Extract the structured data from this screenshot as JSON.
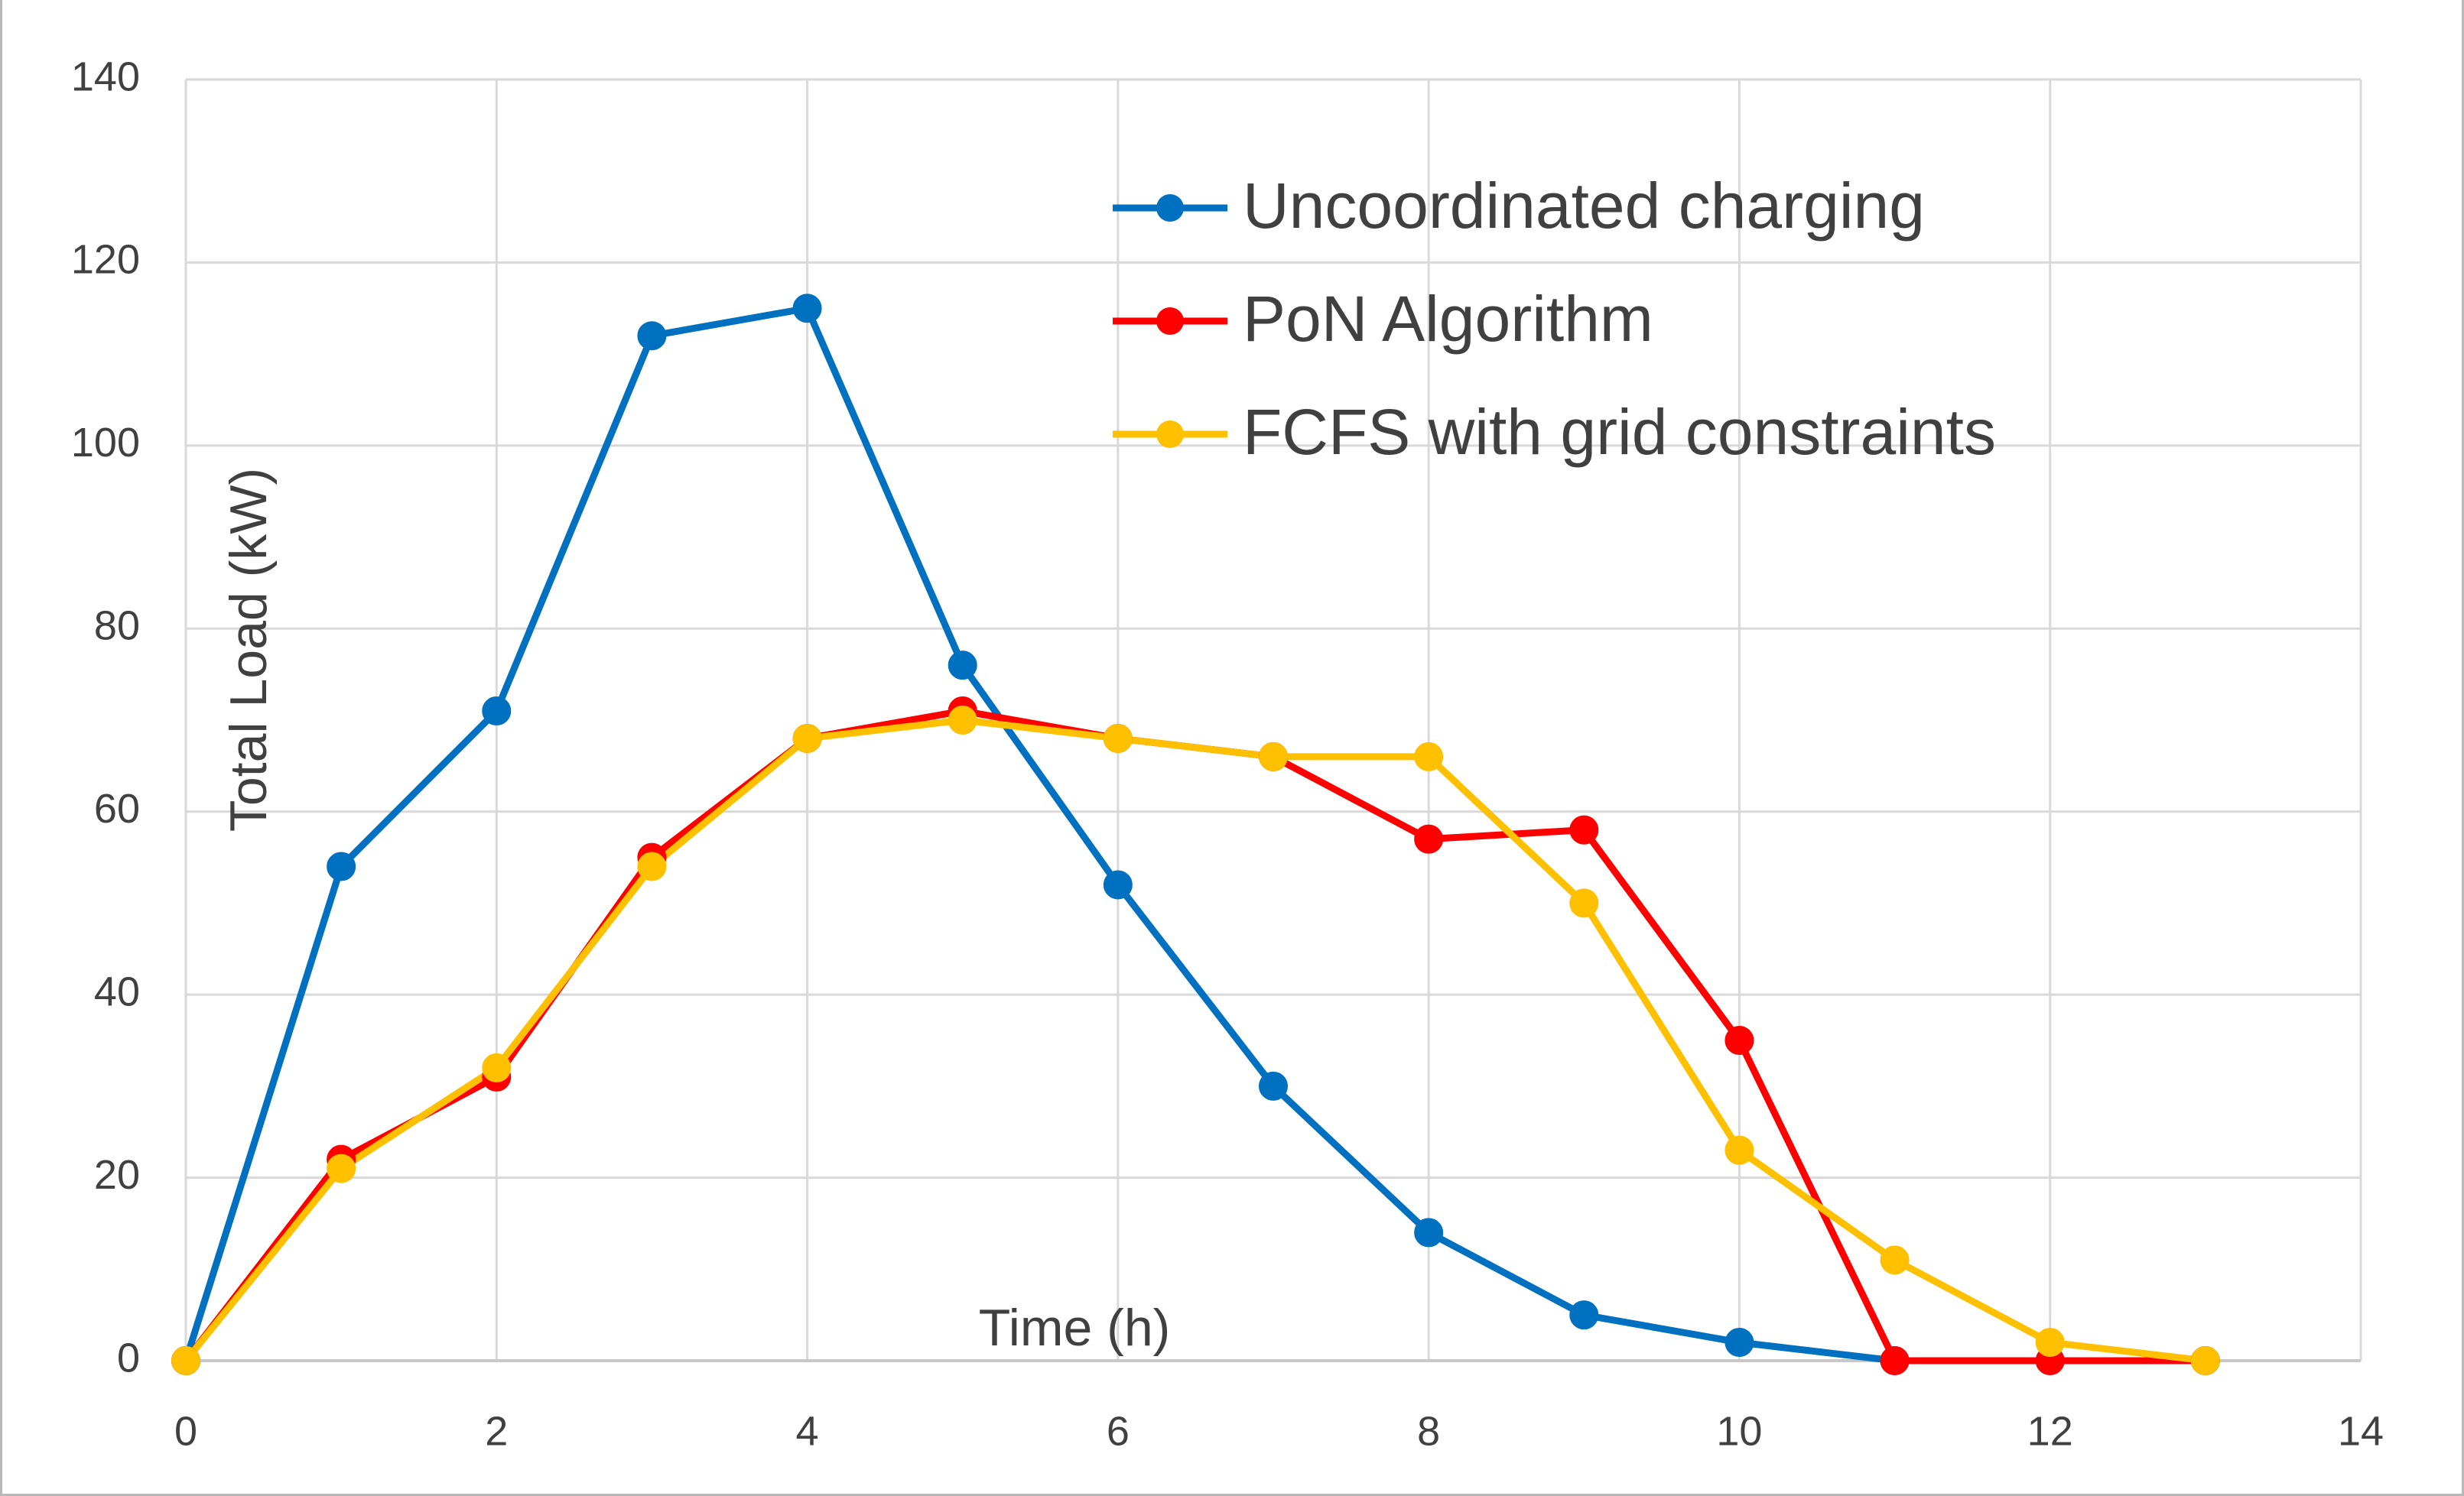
{
  "chart_data": {
    "type": "line",
    "title": "",
    "xlabel": "Time (h)",
    "ylabel": "Total Load (kW)",
    "xlim": [
      0,
      14
    ],
    "ylim": [
      0,
      140
    ],
    "x_ticks": [
      "0",
      "2",
      "4",
      "6",
      "8",
      "10",
      "12",
      "14"
    ],
    "y_ticks": [
      "0",
      "20",
      "40",
      "60",
      "80",
      "100",
      "120",
      "140"
    ],
    "grid": true,
    "legend_position": "top-right",
    "series": [
      {
        "name": "Uncoordinated charging",
        "color": "#0070C0",
        "x": [
          0,
          1,
          2,
          3,
          4,
          5,
          6,
          7,
          8,
          9,
          10,
          11,
          12,
          13
        ],
        "values": [
          0,
          54,
          71,
          112,
          115,
          76,
          52,
          30,
          14,
          5,
          2,
          0,
          0,
          0
        ]
      },
      {
        "name": "PoN Algorithm",
        "color": "#FF0000",
        "x": [
          0,
          1,
          2,
          3,
          4,
          5,
          6,
          7,
          8,
          9,
          10,
          11,
          12,
          13
        ],
        "values": [
          0,
          22,
          31,
          55,
          68,
          71,
          68,
          66,
          57,
          58,
          35,
          0,
          0,
          0
        ]
      },
      {
        "name": "FCFS with grid constraints",
        "color": "#FFC000",
        "x": [
          0,
          1,
          2,
          3,
          4,
          5,
          6,
          7,
          8,
          9,
          10,
          11,
          12,
          13
        ],
        "values": [
          0,
          21,
          32,
          54,
          68,
          70,
          68,
          66,
          66,
          50,
          23,
          11,
          2,
          0
        ]
      }
    ]
  }
}
